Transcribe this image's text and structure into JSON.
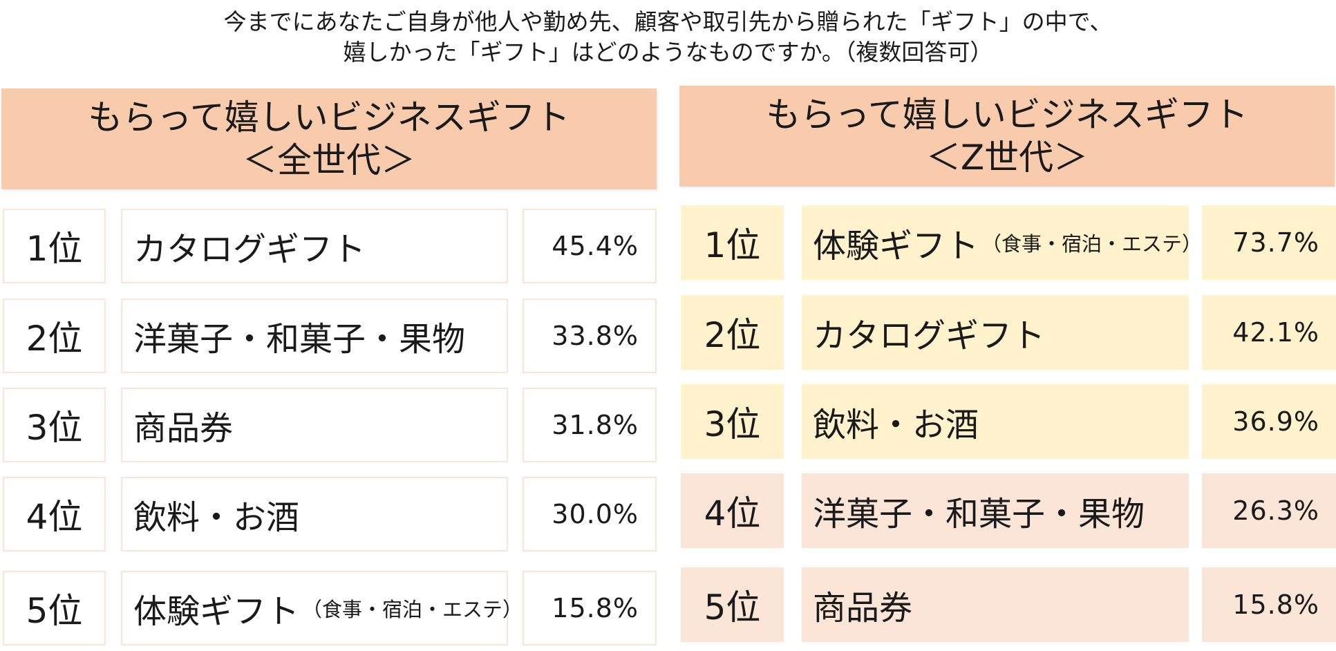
{
  "chart_data": {
    "type": "table",
    "question": [
      "今までにあなたご自身が他人や勤め先、顧客や取引先から贈られた「ギフト」の中で、",
      "嬉しかった「ギフト」はどのようなものですか。（複数回答可）"
    ],
    "panels": [
      {
        "title": [
          "もらって嬉しいビジネスギフト",
          "＜全世代＞"
        ],
        "rows": [
          {
            "rank": "1位",
            "item": "カタログギフト",
            "note": "",
            "value": 45.4,
            "value_label": "45.4%"
          },
          {
            "rank": "2位",
            "item": "洋菓子・和菓子・果物",
            "note": "",
            "value": 33.8,
            "value_label": "33.8%"
          },
          {
            "rank": "3位",
            "item": "商品券",
            "note": "",
            "value": 31.8,
            "value_label": "31.8%"
          },
          {
            "rank": "4位",
            "item": "飲料・お酒",
            "note": "",
            "value": 30.0,
            "value_label": "30.0%"
          },
          {
            "rank": "5位",
            "item": "体験ギフト",
            "note": "（食事・宿泊・エステ）",
            "value": 15.8,
            "value_label": "15.8%"
          }
        ]
      },
      {
        "title": [
          "もらって嬉しいビジネスギフト",
          "＜Z世代＞"
        ],
        "rows": [
          {
            "rank": "1位",
            "item": "体験ギフト",
            "note": "（食事・宿泊・エステ）",
            "value": 73.7,
            "value_label": "73.7%"
          },
          {
            "rank": "2位",
            "item": "カタログギフト",
            "note": "",
            "value": 42.1,
            "value_label": "42.1%"
          },
          {
            "rank": "3位",
            "item": "飲料・お酒",
            "note": "",
            "value": 36.9,
            "value_label": "36.9%"
          },
          {
            "rank": "4位",
            "item": "洋菓子・和菓子・果物",
            "note": "",
            "value": 26.3,
            "value_label": "26.3%"
          },
          {
            "rank": "5位",
            "item": "商品券",
            "note": "",
            "value": 15.8,
            "value_label": "15.8%"
          }
        ]
      }
    ]
  },
  "colors": {
    "header_fill": "#f8cbad",
    "left_cell_border": "#fbe5d6",
    "z_top3_fill": "#fff2cc",
    "z_rest_fill": "#fbe5d6"
  }
}
